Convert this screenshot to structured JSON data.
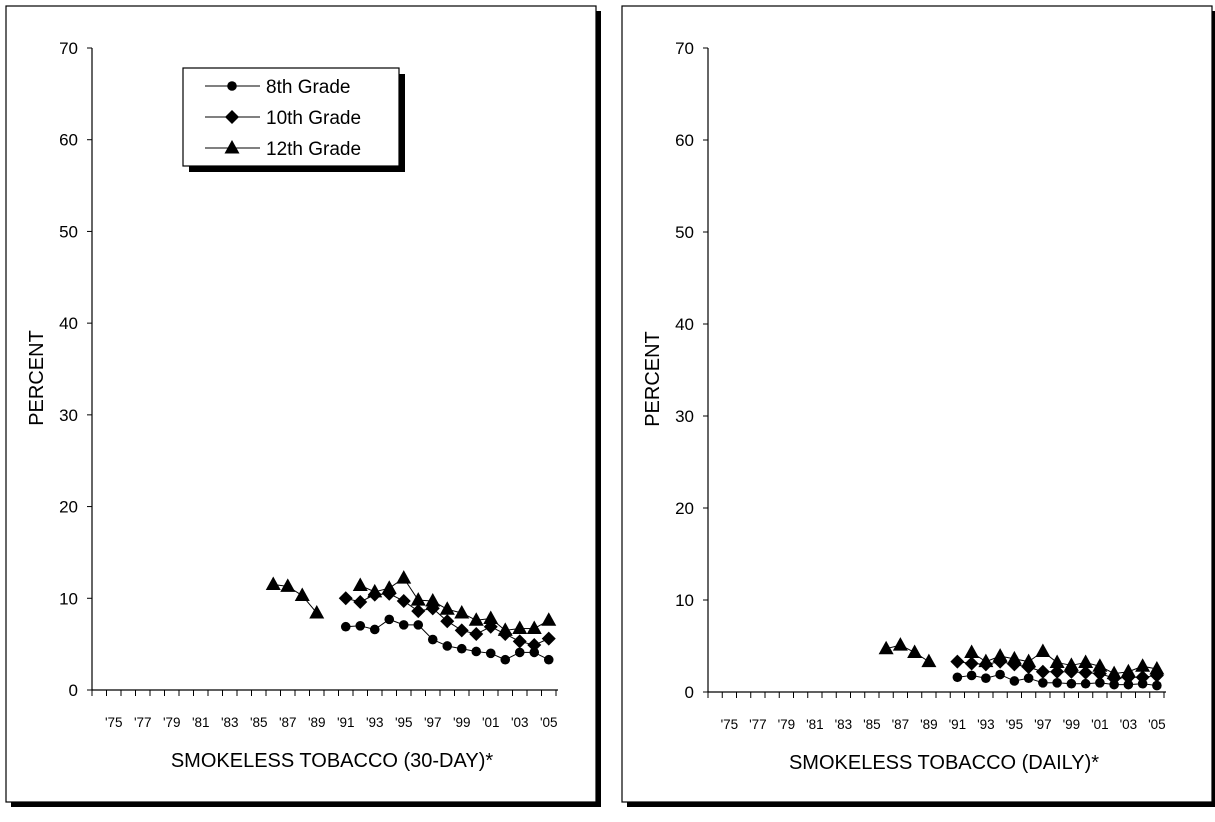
{
  "chart_data": [
    {
      "type": "line",
      "xlabel": "SMOKELESS TOBACCO (30-DAY)*",
      "ylabel": "PERCENT",
      "ylim": [
        0,
        70
      ],
      "xlim": [
        1975,
        2005
      ],
      "y_ticks": [
        0,
        10,
        20,
        30,
        40,
        50,
        60,
        70
      ],
      "x_tick_labels": [
        "'75",
        "'77",
        "'79",
        "'81",
        "'83",
        "'85",
        "'87",
        "'89",
        "'91",
        "'93",
        "'95",
        "'97",
        "'99",
        "'01",
        "'03",
        "'05"
      ],
      "grid": false,
      "legend": "top-left",
      "series": [
        {
          "name": "8th Grade",
          "marker": "circle",
          "x": [
            1991,
            1992,
            1993,
            1994,
            1995,
            1996,
            1997,
            1998,
            1999,
            2000,
            2001,
            2002,
            2003,
            2004,
            2005
          ],
          "values": [
            6.9,
            7.0,
            6.6,
            7.7,
            7.1,
            7.1,
            5.5,
            4.8,
            4.5,
            4.2,
            4.0,
            3.3,
            4.1,
            4.1,
            3.3
          ]
        },
        {
          "name": "10th Grade",
          "marker": "diamond",
          "x": [
            1991,
            1992,
            1993,
            1994,
            1995,
            1996,
            1997,
            1998,
            1999,
            2000,
            2001,
            2002,
            2003,
            2004,
            2005
          ],
          "values": [
            10.0,
            9.6,
            10.4,
            10.5,
            9.7,
            8.6,
            8.9,
            7.5,
            6.5,
            6.1,
            6.9,
            6.1,
            5.3,
            4.9,
            5.6
          ]
        },
        {
          "name": "12th Grade",
          "marker": "triangle",
          "x": [
            1986,
            1987,
            1988,
            1989,
            1992,
            1993,
            1994,
            1995,
            1996,
            1997,
            1998,
            1999,
            2000,
            2001,
            2002,
            2003,
            2004,
            2005
          ],
          "values": [
            11.5,
            11.3,
            10.3,
            8.4,
            11.4,
            10.7,
            11.1,
            12.2,
            9.8,
            9.7,
            8.8,
            8.4,
            7.6,
            7.8,
            6.5,
            6.7,
            6.7,
            7.6
          ]
        }
      ]
    },
    {
      "type": "line",
      "xlabel": "SMOKELESS TOBACCO (DAILY)*",
      "ylabel": "PERCENT",
      "ylim": [
        0,
        70
      ],
      "xlim": [
        1975,
        2005
      ],
      "y_ticks": [
        0,
        10,
        20,
        30,
        40,
        50,
        60,
        70
      ],
      "x_tick_labels": [
        "'75",
        "'77",
        "'79",
        "'81",
        "'83",
        "'85",
        "'87",
        "'89",
        "'91",
        "'93",
        "'95",
        "'97",
        "'99",
        "'01",
        "'03",
        "'05"
      ],
      "grid": false,
      "series": [
        {
          "name": "8th Grade",
          "marker": "circle",
          "x": [
            1991,
            1992,
            1993,
            1994,
            1995,
            1996,
            1997,
            1998,
            1999,
            2000,
            2001,
            2002,
            2003,
            2004,
            2005
          ],
          "values": [
            1.6,
            1.8,
            1.5,
            1.9,
            1.2,
            1.5,
            1.0,
            1.0,
            0.9,
            0.9,
            1.0,
            0.8,
            0.8,
            0.9,
            0.7
          ]
        },
        {
          "name": "10th Grade",
          "marker": "diamond",
          "x": [
            1991,
            1992,
            1993,
            1994,
            1995,
            1996,
            1997,
            1998,
            1999,
            2000,
            2001,
            2002,
            2003,
            2004,
            2005
          ],
          "values": [
            3.3,
            3.1,
            3.0,
            3.3,
            3.0,
            2.7,
            2.2,
            2.2,
            2.2,
            2.1,
            2.0,
            1.5,
            1.6,
            1.6,
            1.8
          ]
        },
        {
          "name": "12th Grade",
          "marker": "triangle",
          "x": [
            1986,
            1987,
            1988,
            1989,
            1992,
            1993,
            1994,
            1995,
            1996,
            1997,
            1998,
            1999,
            2000,
            2001,
            2002,
            2003,
            2004,
            2005
          ],
          "values": [
            4.7,
            5.1,
            4.3,
            3.3,
            4.3,
            3.3,
            3.9,
            3.6,
            3.3,
            4.4,
            3.2,
            2.9,
            3.2,
            2.8,
            2.0,
            2.2,
            2.8,
            2.5
          ]
        }
      ]
    }
  ]
}
